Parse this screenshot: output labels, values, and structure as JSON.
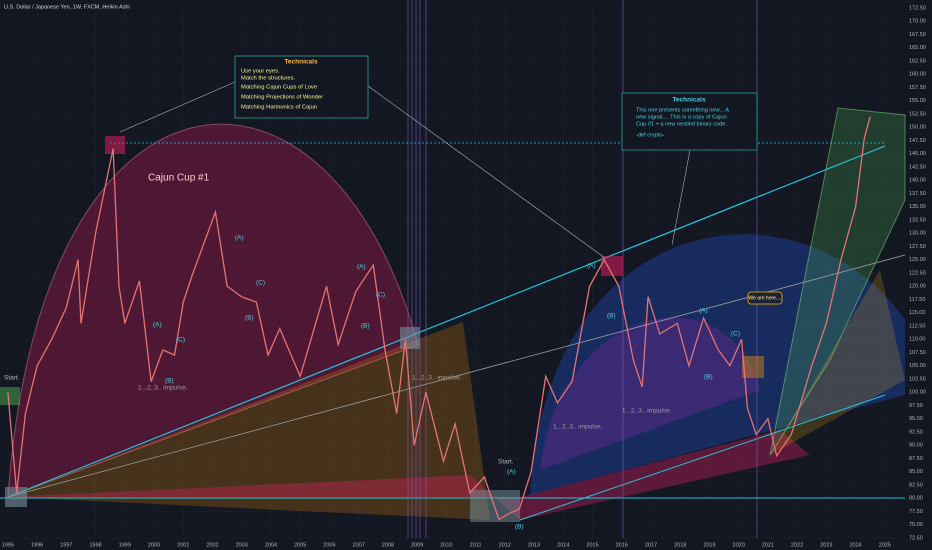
{
  "chart_data": {
    "type": "line",
    "title": "U.S. Dollar / Japanese Yen, 1W, FXCM, Heikin Ashi",
    "cup_label": "Cajun Cup #1",
    "x": [
      1995.0,
      1995.3,
      1995.6,
      1996.0,
      1996.5,
      1997.0,
      1997.4,
      1997.5,
      1998.0,
      1998.6,
      1998.8,
      1999.0,
      1999.5,
      1999.9,
      2000.3,
      2000.7,
      2001.0,
      2001.3,
      2002.1,
      2002.5,
      2003.0,
      2003.5,
      2003.9,
      2004.3,
      2005.0,
      2005.9,
      2006.3,
      2006.9,
      2007.5,
      2007.9,
      2008.3,
      2008.6,
      2008.9,
      2009.3,
      2009.9,
      2010.3,
      2010.8,
      2011.3,
      2011.8,
      2012.1,
      2012.5,
      2012.9,
      2013.4,
      2013.8,
      2014.3,
      2014.9,
      2015.4,
      2015.9,
      2016.4,
      2016.7,
      2016.9,
      2017.3,
      2017.9,
      2018.3,
      2018.8,
      2019.3,
      2019.7,
      2020.1,
      2020.3,
      2020.6,
      2021.0,
      2021.3,
      2021.8,
      2022.5,
      2023.0,
      2023.5,
      2024.0,
      2024.3,
      2024.5
    ],
    "values": [
      100,
      81,
      96,
      105,
      110,
      116,
      125,
      113,
      130,
      146,
      120,
      113,
      121,
      102,
      108,
      107,
      117,
      122,
      134,
      120,
      118,
      117,
      107,
      112,
      103,
      120,
      109,
      119,
      124,
      108,
      96,
      110,
      90,
      100,
      87,
      94,
      81,
      84,
      76,
      77,
      78,
      85,
      103,
      98,
      102,
      120,
      125,
      120,
      106,
      101,
      118,
      111,
      113,
      105,
      114,
      108,
      105,
      110,
      97,
      92,
      95,
      88,
      92,
      105,
      113,
      125,
      135,
      148,
      152
    ],
    "color": "#e57373",
    "xlim": [
      1994.73,
      2025.69
    ],
    "ylim": [
      72.5,
      172.5
    ],
    "xticks": [
      1995,
      1996,
      1997,
      1998,
      1999,
      2000,
      2001,
      2002,
      2003,
      2004,
      2005,
      2006,
      2007,
      2008,
      2009,
      2010,
      2011,
      2012,
      2013,
      2014,
      2015,
      2016,
      2017,
      2018,
      2019,
      2020,
      2021,
      2022,
      2023,
      2024,
      2025
    ],
    "yticks": [
      {
        "value": 72.5,
        "label": "72.50"
      },
      {
        "value": 75,
        "label": "75.00"
      },
      {
        "value": 77.5,
        "label": "77.50"
      },
      {
        "value": 80,
        "label": "80.00"
      },
      {
        "value": 82.5,
        "label": "82.50"
      },
      {
        "value": 85,
        "label": "85.00"
      },
      {
        "value": 87.5,
        "label": "87.50"
      },
      {
        "value": 90,
        "label": "90.00"
      },
      {
        "value": 92.5,
        "label": "92.50"
      },
      {
        "value": 95,
        "label": "95.00"
      },
      {
        "value": 97.5,
        "label": "97.50"
      },
      {
        "value": 100,
        "label": "100.00"
      },
      {
        "value": 102.5,
        "label": "102.50"
      },
      {
        "value": 105,
        "label": "105.00"
      },
      {
        "value": 107.5,
        "label": "107.50"
      },
      {
        "value": 110,
        "label": "110.00"
      },
      {
        "value": 112.5,
        "label": "112.50"
      },
      {
        "value": 115,
        "label": "115.00"
      },
      {
        "value": 117.5,
        "label": "117.50"
      },
      {
        "value": 120,
        "label": "120.00"
      },
      {
        "value": 122.5,
        "label": "122.50"
      },
      {
        "value": 125,
        "label": "125.00"
      },
      {
        "value": 127.5,
        "label": "127.50"
      },
      {
        "value": 130,
        "label": "130.00"
      },
      {
        "value": 132.5,
        "label": "132.50"
      },
      {
        "value": 135,
        "label": "135.00"
      },
      {
        "value": 137.5,
        "label": "137.50"
      },
      {
        "value": 140,
        "label": "140.00"
      },
      {
        "value": 142.5,
        "label": "142.50"
      },
      {
        "value": 145,
        "label": "145.00"
      },
      {
        "value": 147.5,
        "label": "147.50"
      },
      {
        "value": 150,
        "label": "150.00"
      },
      {
        "value": 152.5,
        "label": "152.50"
      },
      {
        "value": 155,
        "label": "155.00"
      },
      {
        "value": 157.5,
        "label": "157.50"
      },
      {
        "value": 160,
        "label": "160.00"
      },
      {
        "value": 162.5,
        "label": "162.50"
      },
      {
        "value": 165,
        "label": "165.00"
      },
      {
        "value": 167.5,
        "label": "167.50"
      },
      {
        "value": 170,
        "label": "170.00"
      },
      {
        "value": 172.5,
        "label": "172.50"
      }
    ],
    "grid": true,
    "annotations": [
      "Start.",
      "Start.",
      "(A)",
      "(B)",
      "(C)",
      "(A)",
      "(B)",
      "(C)",
      "(A)",
      "(B)",
      "(C)",
      "(A)",
      "(B)",
      "(A)",
      "(B)",
      "(A)",
      "(B)",
      "(C)",
      "1...2..3.. impulse.",
      "1...2..3.. impulse.",
      "1...2..3.. impulse.",
      "1...2..3.. impulse."
    ],
    "text_boxes": [
      {
        "title": "Technicals",
        "lines": [
          "Use your eyes.",
          "Match the structures.",
          "Matching Cajun Cups of Love",
          "Matching Projections of Wonder",
          "Matching Harmonics of Cajun"
        ]
      },
      {
        "title": "Technicals",
        "lines": [
          "This one presents something new... A",
          "new signal.... This is a copy of Cajun",
          "Cup #1  +  a new nestled binary code.",
          "-def crypto-"
        ]
      }
    ],
    "callout": "We are here...."
  }
}
